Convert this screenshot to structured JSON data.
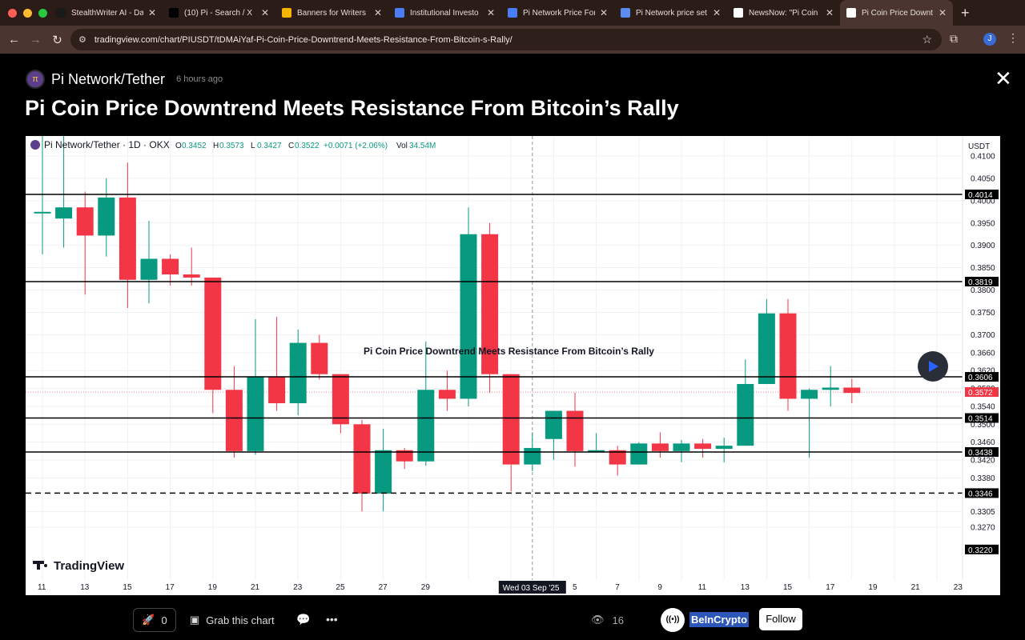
{
  "browser": {
    "tabs": [
      {
        "label": "StealthWriter AI - Da",
        "icon": "stealthwriter-icon",
        "color": "#1a1a1a"
      },
      {
        "label": "(10) Pi - Search / X",
        "icon": "x-icon",
        "color": "#000000"
      },
      {
        "label": "Banners for Writers",
        "icon": "drive-icon",
        "color": "#f4b400"
      },
      {
        "label": "Institutional Investo",
        "icon": "docs-icon",
        "color": "#4a7cf4"
      },
      {
        "label": "Pi Network Price For",
        "icon": "docs-icon",
        "color": "#4a7cf4"
      },
      {
        "label": "Pi Network price set",
        "icon": "chrome-icon",
        "color": "#5b8def"
      },
      {
        "label": "NewsNow: \"Pi Coin",
        "icon": "newsnow-icon",
        "color": "#ffffff"
      },
      {
        "label": "Pi Coin Price Downt",
        "icon": "tradingview-icon",
        "color": "#ffffff",
        "active": true
      }
    ],
    "url": "tradingview.com/chart/PIUSDT/tDMAiYaf-Pi-Coin-Price-Downtrend-Meets-Resistance-From-Bitcoin-s-Rally/",
    "profile_initial": "J"
  },
  "post": {
    "symbol": "Pi Network/Tether",
    "time_ago": "6 hours ago",
    "headline": "Pi Coin Price Downtrend Meets Resistance From Bitcoin’s Rally",
    "boosts": "0",
    "grab_label": "Grab this chart",
    "views": "16",
    "author": "BeInCrypto",
    "author_logo": "((•))",
    "follow_label": "Follow"
  },
  "chart_data": {
    "type": "candlestick",
    "header": {
      "title": "Pi Network/Tether · 1D · OKX",
      "o": "0.3452",
      "h": "0.3573",
      "l": "0.3427",
      "c": "0.3522",
      "change": "+0.0071 (+2.06%)",
      "vol": "34.54M"
    },
    "currency": "USDT",
    "watermark_text": "Pi Coin Price Downtrend Meets Resistance From Bitcoin’s Rally",
    "brand": "TradingView",
    "y_ticks": [
      "0.4100",
      "0.4050",
      "0.4000",
      "0.3950",
      "0.3900",
      "0.3850",
      "0.3800",
      "0.3750",
      "0.3700",
      "0.3660",
      "0.3620",
      "0.3580",
      "0.3540",
      "0.3500",
      "0.3460",
      "0.3420",
      "0.3380",
      "0.3305",
      "0.3270"
    ],
    "x_labels": [
      "11",
      "13",
      "15",
      "17",
      "19",
      "21",
      "23",
      "25",
      "27",
      "29",
      "Sep",
      "5",
      "7",
      "9",
      "11",
      "13",
      "15",
      "17",
      "19",
      "21",
      "23"
    ],
    "crosshair_date": "Wed 03 Sep '25",
    "levels": [
      {
        "value": 0.4014,
        "label": "0.4014",
        "style": "solid"
      },
      {
        "value": 0.3819,
        "label": "0.3819",
        "style": "solid"
      },
      {
        "value": 0.3606,
        "label": "0.3606",
        "style": "solid"
      },
      {
        "value": 0.3514,
        "label": "0.3514",
        "style": "solid"
      },
      {
        "value": 0.3438,
        "label": "0.3438",
        "style": "solid"
      },
      {
        "value": 0.3346,
        "label": "0.3346",
        "style": "dashed"
      },
      {
        "value": 0.322,
        "label": "0.3220",
        "style": "none"
      }
    ],
    "current_price": {
      "value": 0.3572,
      "label": "0.3572"
    },
    "candles": [
      {
        "day": 11,
        "o": 0.3975,
        "h": 0.415,
        "l": 0.388,
        "c": 0.3975
      },
      {
        "day": 12,
        "o": 0.396,
        "h": 0.417,
        "l": 0.3895,
        "c": 0.3985
      },
      {
        "day": 13,
        "o": 0.3985,
        "h": 0.402,
        "l": 0.379,
        "c": 0.3922
      },
      {
        "day": 14,
        "o": 0.3922,
        "h": 0.405,
        "l": 0.3875,
        "c": 0.4007
      },
      {
        "day": 15,
        "o": 0.4007,
        "h": 0.4085,
        "l": 0.376,
        "c": 0.3823
      },
      {
        "day": 16,
        "o": 0.3823,
        "h": 0.3955,
        "l": 0.377,
        "c": 0.387
      },
      {
        "day": 17,
        "o": 0.387,
        "h": 0.388,
        "l": 0.381,
        "c": 0.3835
      },
      {
        "day": 18,
        "o": 0.3835,
        "h": 0.3895,
        "l": 0.381,
        "c": 0.3828
      },
      {
        "day": 19,
        "o": 0.3828,
        "h": 0.3828,
        "l": 0.3525,
        "c": 0.3577
      },
      {
        "day": 20,
        "o": 0.3577,
        "h": 0.363,
        "l": 0.3425,
        "c": 0.344
      },
      {
        "day": 21,
        "o": 0.344,
        "h": 0.3735,
        "l": 0.3432,
        "c": 0.3606
      },
      {
        "day": 22,
        "o": 0.3606,
        "h": 0.374,
        "l": 0.353,
        "c": 0.3547
      },
      {
        "day": 23,
        "o": 0.3547,
        "h": 0.3712,
        "l": 0.352,
        "c": 0.3682
      },
      {
        "day": 24,
        "o": 0.3682,
        "h": 0.37,
        "l": 0.36,
        "c": 0.3612
      },
      {
        "day": 25,
        "o": 0.3612,
        "h": 0.3612,
        "l": 0.348,
        "c": 0.35
      },
      {
        "day": 26,
        "o": 0.35,
        "h": 0.351,
        "l": 0.3305,
        "c": 0.3345
      },
      {
        "day": 27,
        "o": 0.3345,
        "h": 0.349,
        "l": 0.3305,
        "c": 0.3442
      },
      {
        "day": 28,
        "o": 0.3442,
        "h": 0.3447,
        "l": 0.34,
        "c": 0.3417
      },
      {
        "day": 29,
        "o": 0.3417,
        "h": 0.3685,
        "l": 0.3407,
        "c": 0.3577
      },
      {
        "day": 30,
        "o": 0.3577,
        "h": 0.362,
        "l": 0.353,
        "c": 0.3557
      },
      {
        "day": 31,
        "o": 0.3557,
        "h": 0.3985,
        "l": 0.354,
        "c": 0.3925
      },
      {
        "day": 32,
        "o": 0.3925,
        "h": 0.395,
        "l": 0.357,
        "c": 0.3612
      },
      {
        "day": 33,
        "o": 0.3612,
        "h": 0.3612,
        "l": 0.335,
        "c": 0.341
      },
      {
        "day": 34,
        "o": 0.341,
        "h": 0.3482,
        "l": 0.3395,
        "c": 0.3447
      },
      {
        "day": 35,
        "o": 0.3467,
        "h": 0.353,
        "l": 0.342,
        "c": 0.353
      },
      {
        "day": 36,
        "o": 0.353,
        "h": 0.357,
        "l": 0.3405,
        "c": 0.344
      },
      {
        "day": 37,
        "o": 0.3442,
        "h": 0.348,
        "l": 0.344,
        "c": 0.3442
      },
      {
        "day": 38,
        "o": 0.3442,
        "h": 0.3452,
        "l": 0.3385,
        "c": 0.341
      },
      {
        "day": 39,
        "o": 0.341,
        "h": 0.346,
        "l": 0.341,
        "c": 0.3457
      },
      {
        "day": 40,
        "o": 0.3457,
        "h": 0.3482,
        "l": 0.3425,
        "c": 0.344
      },
      {
        "day": 41,
        "o": 0.344,
        "h": 0.3465,
        "l": 0.3415,
        "c": 0.3457
      },
      {
        "day": 42,
        "o": 0.3457,
        "h": 0.3467,
        "l": 0.3425,
        "c": 0.3445
      },
      {
        "day": 43,
        "o": 0.3445,
        "h": 0.347,
        "l": 0.3415,
        "c": 0.3452
      },
      {
        "day": 44,
        "o": 0.3452,
        "h": 0.3645,
        "l": 0.3452,
        "c": 0.359
      },
      {
        "day": 45,
        "o": 0.359,
        "h": 0.378,
        "l": 0.359,
        "c": 0.3748
      },
      {
        "day": 46,
        "o": 0.3748,
        "h": 0.378,
        "l": 0.353,
        "c": 0.3557
      },
      {
        "day": 47,
        "o": 0.3557,
        "h": 0.358,
        "l": 0.3425,
        "c": 0.3577
      },
      {
        "day": 48,
        "o": 0.3577,
        "h": 0.363,
        "l": 0.354,
        "c": 0.3582
      },
      {
        "day": 49,
        "o": 0.3582,
        "h": 0.3602,
        "l": 0.3547,
        "c": 0.357
      }
    ],
    "colors": {
      "up": "#089981",
      "down": "#f23645"
    }
  }
}
